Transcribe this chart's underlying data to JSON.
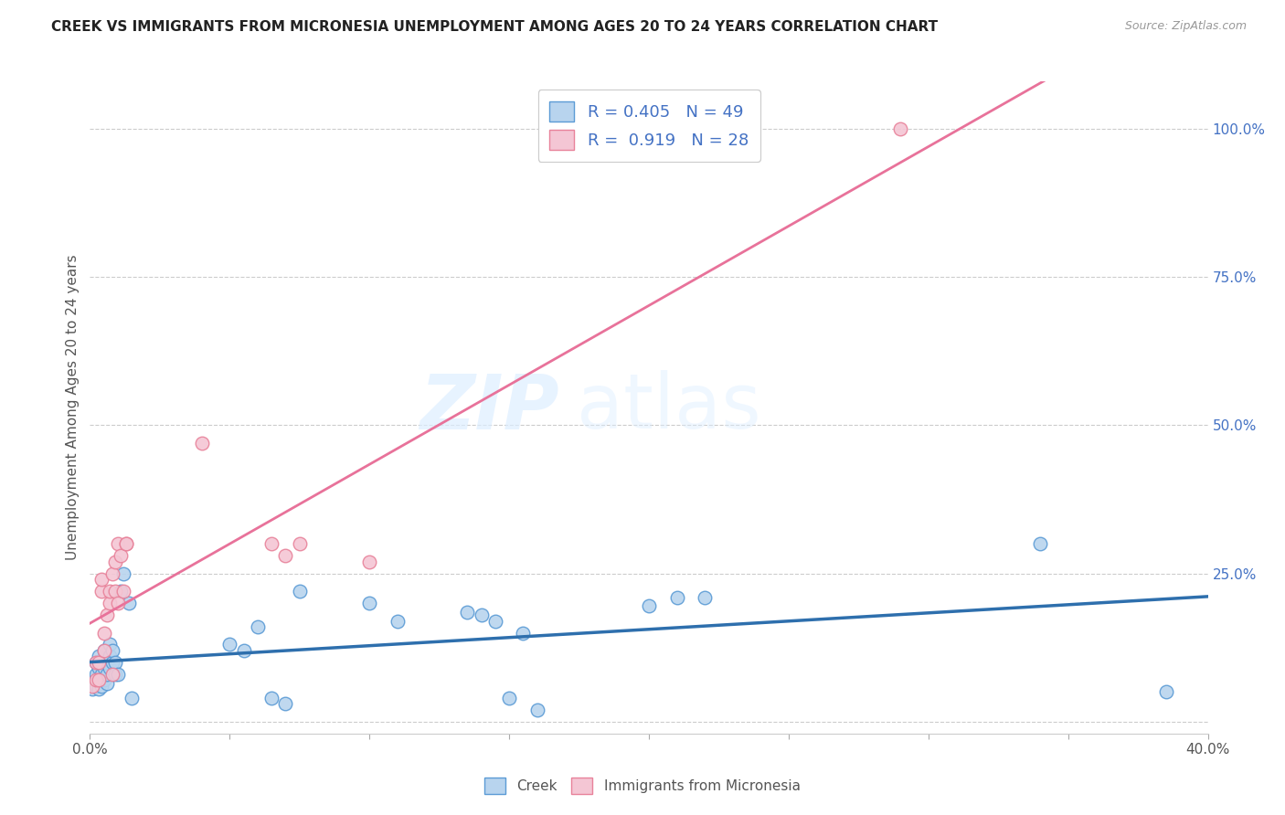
{
  "title": "CREEK VS IMMIGRANTS FROM MICRONESIA UNEMPLOYMENT AMONG AGES 20 TO 24 YEARS CORRELATION CHART",
  "source": "Source: ZipAtlas.com",
  "ylabel": "Unemployment Among Ages 20 to 24 years",
  "xlim": [
    0.0,
    0.4
  ],
  "ylim": [
    -0.02,
    1.08
  ],
  "xticks": [
    0.0,
    0.05,
    0.1,
    0.15,
    0.2,
    0.25,
    0.3,
    0.35,
    0.4
  ],
  "xticklabels": [
    "0.0%",
    "",
    "",
    "",
    "",
    "",
    "",
    "",
    "40.0%"
  ],
  "ytick_positions": [
    0.0,
    0.25,
    0.5,
    0.75,
    1.0
  ],
  "yticklabels": [
    "",
    "25.0%",
    "50.0%",
    "75.0%",
    "100.0%"
  ],
  "creek_color": "#b8d4ee",
  "creek_edge_color": "#5b9bd5",
  "micronesia_color": "#f4c6d4",
  "micronesia_edge_color": "#e8829a",
  "creek_line_color": "#2e6fad",
  "micronesia_line_color": "#e8729a",
  "creek_R": 0.405,
  "creek_N": 49,
  "micronesia_R": 0.919,
  "micronesia_N": 28,
  "watermark_zip": "ZIP",
  "watermark_atlas": "atlas",
  "legend_label_creek": "Creek",
  "legend_label_micronesia": "Immigrants from Micronesia",
  "creek_x": [
    0.001,
    0.001,
    0.002,
    0.002,
    0.002,
    0.003,
    0.003,
    0.003,
    0.003,
    0.004,
    0.004,
    0.004,
    0.005,
    0.005,
    0.005,
    0.006,
    0.006,
    0.006,
    0.007,
    0.007,
    0.007,
    0.008,
    0.008,
    0.009,
    0.009,
    0.01,
    0.011,
    0.012,
    0.014,
    0.015,
    0.05,
    0.055,
    0.06,
    0.065,
    0.07,
    0.075,
    0.1,
    0.11,
    0.135,
    0.14,
    0.145,
    0.15,
    0.155,
    0.16,
    0.2,
    0.21,
    0.22,
    0.34,
    0.385
  ],
  "creek_y": [
    0.055,
    0.07,
    0.06,
    0.08,
    0.1,
    0.055,
    0.07,
    0.09,
    0.11,
    0.06,
    0.08,
    0.1,
    0.07,
    0.09,
    0.12,
    0.065,
    0.08,
    0.1,
    0.09,
    0.11,
    0.13,
    0.1,
    0.12,
    0.08,
    0.1,
    0.08,
    0.22,
    0.25,
    0.2,
    0.04,
    0.13,
    0.12,
    0.16,
    0.04,
    0.03,
    0.22,
    0.2,
    0.17,
    0.185,
    0.18,
    0.17,
    0.04,
    0.15,
    0.02,
    0.195,
    0.21,
    0.21,
    0.3,
    0.05
  ],
  "micronesia_x": [
    0.001,
    0.002,
    0.002,
    0.003,
    0.003,
    0.004,
    0.004,
    0.005,
    0.005,
    0.006,
    0.007,
    0.007,
    0.008,
    0.008,
    0.009,
    0.009,
    0.01,
    0.01,
    0.011,
    0.012,
    0.013,
    0.013,
    0.04,
    0.065,
    0.07,
    0.075,
    0.1,
    0.29
  ],
  "micronesia_y": [
    0.06,
    0.07,
    0.1,
    0.07,
    0.1,
    0.22,
    0.24,
    0.12,
    0.15,
    0.18,
    0.2,
    0.22,
    0.25,
    0.08,
    0.22,
    0.27,
    0.2,
    0.3,
    0.28,
    0.22,
    0.3,
    0.3,
    0.47,
    0.3,
    0.28,
    0.3,
    0.27,
    1.0
  ]
}
